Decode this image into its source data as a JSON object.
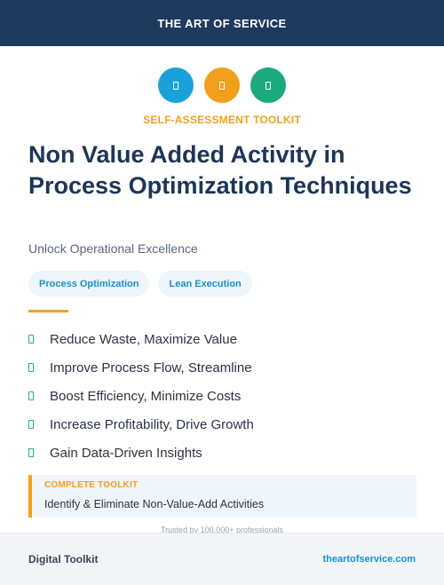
{
  "header": {
    "brand": "THE ART OF SERVICE"
  },
  "icons": [
    {
      "name": "document-icon",
      "color": "#1ba1d9"
    },
    {
      "name": "document-icon",
      "color": "#f29f1c"
    },
    {
      "name": "document-icon",
      "color": "#1aaa7e"
    }
  ],
  "kicker": "SELF-ASSESSMENT TOOLKIT",
  "title": "Non Value Added Activity in Process Optimization Techniques",
  "subtitle": "Unlock Operational Excellence",
  "tags": [
    "Process Optimization",
    "Lean Execution"
  ],
  "benefits": [
    "Reduce Waste, Maximize Value",
    "Improve Process Flow, Streamline",
    "Boost Efficiency, Minimize Costs",
    "Increase Profitability, Drive Growth",
    "Gain Data-Driven Insights"
  ],
  "callout": {
    "label": "COMPLETE TOOLKIT",
    "text": "Identify & Eliminate Non-Value-Add Activities"
  },
  "trusted": "Trusted by 100,000+ professionals",
  "footer": {
    "left": "Digital Toolkit",
    "right": "theartofservice.com"
  }
}
